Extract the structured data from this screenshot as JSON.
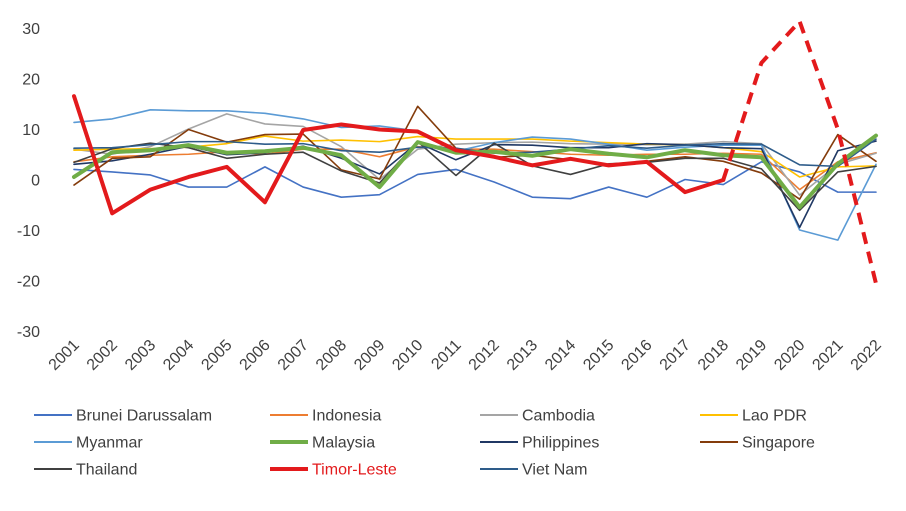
{
  "chart_data": {
    "type": "line",
    "title": "",
    "xlabel": "",
    "ylabel": "",
    "ylim": [
      -30,
      30
    ],
    "y_ticks": [
      30,
      20,
      10,
      0,
      -10,
      -20,
      -30
    ],
    "grid": false,
    "legend_position": "bottom",
    "categories": [
      "2001",
      "2002",
      "2003",
      "2004",
      "2005",
      "2006",
      "2007",
      "2008",
      "2009",
      "2010",
      "2011",
      "2012",
      "2013",
      "2014",
      "2015",
      "2016",
      "2017",
      "2018",
      "2019",
      "2020",
      "2021",
      "2022"
    ],
    "series": [
      {
        "name": "Brunei Darussalam",
        "color": "#4472C4",
        "emphasis": false,
        "values": [
          2.0,
          1.5,
          0.9,
          -1.5,
          -1.5,
          2.5,
          -1.5,
          -3.5,
          -3.0,
          1.0,
          2.0,
          -0.5,
          -3.5,
          -3.8,
          -1.5,
          -3.5,
          0.0,
          -1.0,
          3.5,
          1.5,
          -2.5,
          -2.5
        ]
      },
      {
        "name": "Indonesia",
        "color": "#ED7D31",
        "emphasis": false,
        "values": [
          3.5,
          4.5,
          4.8,
          5.0,
          5.5,
          5.0,
          6.0,
          6.0,
          4.5,
          6.5,
          6.0,
          6.0,
          5.5,
          5.0,
          4.8,
          5.0,
          5.0,
          5.2,
          5.0,
          -2.0,
          3.5,
          5.3
        ]
      },
      {
        "name": "Cambodia",
        "color": "#A5A5A5",
        "emphasis": false,
        "values": [
          6.0,
          5.0,
          6.5,
          10.0,
          13.0,
          11.0,
          10.5,
          6.5,
          0.0,
          6.0,
          7.0,
          7.3,
          7.4,
          7.1,
          7.0,
          6.9,
          7.0,
          7.5,
          7.1,
          -3.1,
          3.0,
          5.2
        ]
      },
      {
        "name": "Lao PDR",
        "color": "#FFC000",
        "emphasis": false,
        "values": [
          5.8,
          6.0,
          6.1,
          6.4,
          7.1,
          8.6,
          7.6,
          7.8,
          7.5,
          8.5,
          8.0,
          8.0,
          8.0,
          7.6,
          7.3,
          7.0,
          6.9,
          6.3,
          5.5,
          0.5,
          2.5,
          2.7
        ]
      },
      {
        "name": "Myanmar",
        "color": "#5B9BD5",
        "emphasis": false,
        "values": [
          11.3,
          12.0,
          13.8,
          13.6,
          13.6,
          13.1,
          12.0,
          10.3,
          10.6,
          9.6,
          5.6,
          7.3,
          8.4,
          8.0,
          7.0,
          5.8,
          6.4,
          6.8,
          6.8,
          -10.0,
          -12.0,
          3.0
        ]
      },
      {
        "name": "Malaysia",
        "color": "#70AD47",
        "emphasis": true,
        "values": [
          0.5,
          5.4,
          5.8,
          6.8,
          5.3,
          5.6,
          6.3,
          4.8,
          -1.5,
          7.4,
          5.3,
          5.5,
          4.7,
          6.0,
          5.1,
          4.4,
          5.8,
          4.8,
          4.4,
          -5.5,
          3.1,
          8.7
        ]
      },
      {
        "name": "Philippines",
        "color": "#203864",
        "emphasis": false,
        "values": [
          3.0,
          3.7,
          5.0,
          6.6,
          4.9,
          5.3,
          6.6,
          4.2,
          1.1,
          7.3,
          3.9,
          6.9,
          6.8,
          6.3,
          6.3,
          7.1,
          6.9,
          6.3,
          6.1,
          -9.5,
          5.7,
          7.6
        ]
      },
      {
        "name": "Singapore",
        "color": "#843C0C",
        "emphasis": false,
        "values": [
          -1.1,
          4.2,
          4.5,
          9.9,
          7.4,
          8.9,
          9.0,
          1.9,
          0.1,
          14.5,
          6.2,
          4.4,
          4.8,
          3.9,
          3.0,
          3.6,
          4.5,
          3.6,
          1.3,
          -3.9,
          8.9,
          3.6
        ]
      },
      {
        "name": "Thailand",
        "color": "#404040",
        "emphasis": false,
        "values": [
          3.4,
          6.1,
          7.2,
          6.3,
          4.2,
          5.0,
          5.4,
          1.7,
          -0.7,
          7.5,
          0.8,
          7.2,
          2.7,
          1.0,
          3.1,
          3.4,
          4.2,
          4.2,
          2.1,
          -6.1,
          1.5,
          2.6
        ]
      },
      {
        "name": "Timor-Leste",
        "color": "#E31A1C",
        "emphasis": true,
        "values": [
          16.5,
          -6.7,
          -2.0,
          0.5,
          2.5,
          -4.5,
          9.8,
          10.9,
          9.9,
          9.5,
          5.8,
          4.5,
          2.8,
          4.1,
          2.8,
          3.5,
          -2.5,
          -0.1,
          23.1,
          31.3,
          10.0,
          -20.6
        ],
        "dashed_from": "2018"
      },
      {
        "name": "Viet Nam",
        "color": "#2E5C8A",
        "emphasis": false,
        "values": [
          6.2,
          6.3,
          6.9,
          7.5,
          7.5,
          7.0,
          7.1,
          5.7,
          5.4,
          6.4,
          6.2,
          5.2,
          5.4,
          6.0,
          6.7,
          6.2,
          6.8,
          7.1,
          7.0,
          2.9,
          2.6,
          8.0
        ]
      }
    ]
  }
}
